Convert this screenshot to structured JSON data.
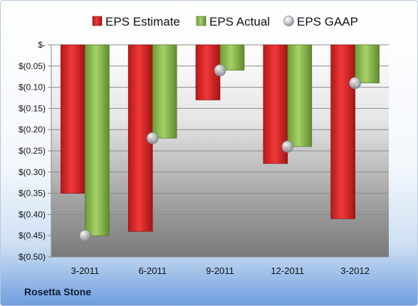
{
  "company": "Rosetta Stone",
  "colors": {
    "estimate": "#d42828",
    "actual": "#88ba4c",
    "gaap": "#b7bcc4"
  },
  "chart_data": {
    "type": "bar",
    "categories": [
      "3-2011",
      "6-2011",
      "9-2011",
      "12-2011",
      "3-2012"
    ],
    "series": [
      {
        "name": "EPS Estimate",
        "values": [
          -0.35,
          -0.44,
          -0.13,
          -0.28,
          -0.41
        ]
      },
      {
        "name": "EPS Actual",
        "values": [
          -0.45,
          -0.22,
          -0.06,
          -0.24,
          -0.09
        ]
      },
      {
        "name": "EPS GAAP",
        "marker": "circle",
        "values": [
          -0.45,
          -0.22,
          -0.06,
          -0.24,
          -0.09
        ]
      }
    ],
    "y_ticks": [
      "$-",
      "$(0.05)",
      "$(0.10)",
      "$(0.15)",
      "$(0.20)",
      "$(0.25)",
      "$(0.30)",
      "$(0.35)",
      "$(0.40)",
      "$(0.45)",
      "$(0.50)"
    ],
    "ylim": [
      -0.5,
      0
    ],
    "grid": true,
    "legend_position": "top"
  }
}
